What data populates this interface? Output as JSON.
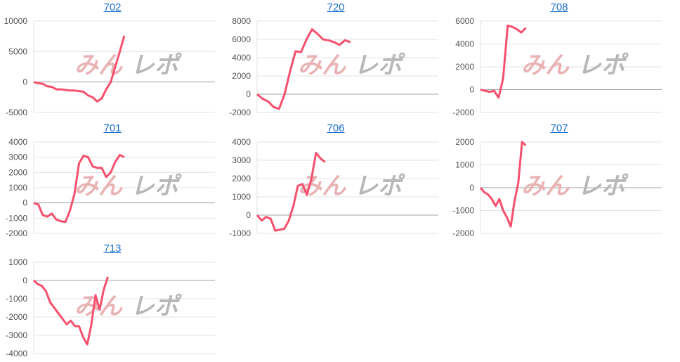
{
  "watermark": "みんレポ",
  "colors": {
    "line": "#f5506e",
    "grid": "#e3e3e3",
    "zero": "#a0a0a0",
    "title": "#1a6fd0"
  },
  "chart_data": [
    {
      "type": "line",
      "title": "702",
      "ylim": [
        -5000,
        10000
      ],
      "yticks": [
        10000,
        5000,
        0,
        -5000
      ],
      "xslots": 41,
      "values": [
        0,
        -200,
        -300,
        -700,
        -800,
        -1200,
        -1200,
        -1300,
        -1400,
        -1400,
        -1500,
        -1600,
        -2200,
        -2500,
        -3200,
        -2700,
        -1200,
        0,
        2500,
        5000,
        7600
      ]
    },
    {
      "type": "line",
      "title": "720",
      "ylim": [
        -2000,
        8000
      ],
      "yticks": [
        8000,
        6000,
        4000,
        2000,
        0,
        -2000
      ],
      "xslots": 34,
      "values": [
        0,
        -500,
        -800,
        -1400,
        -1600,
        0,
        2500,
        4700,
        4600,
        6000,
        7100,
        6600,
        6000,
        5900,
        5700,
        5400,
        5900,
        5700
      ]
    },
    {
      "type": "line",
      "title": "708",
      "ylim": [
        -2000,
        6000
      ],
      "yticks": [
        6000,
        4000,
        2000,
        0,
        -2000
      ],
      "xslots": 41,
      "values": [
        0,
        -100,
        -200,
        -100,
        -700,
        1000,
        5600,
        5500,
        5300,
        5000,
        5400
      ]
    },
    {
      "type": "line",
      "title": "701",
      "ylim": [
        -2000,
        4000
      ],
      "yticks": [
        4000,
        3000,
        2000,
        1000,
        0,
        -1000,
        -2000
      ],
      "xslots": 41,
      "values": [
        0,
        -100,
        -800,
        -900,
        -700,
        -1100,
        -1200,
        -1250,
        -500,
        600,
        2600,
        3100,
        3000,
        2400,
        2300,
        2300,
        1700,
        2000,
        2700,
        3150,
        3000
      ]
    },
    {
      "type": "line",
      "title": "706",
      "ylim": [
        -1000,
        4000
      ],
      "yticks": [
        4000,
        3000,
        2000,
        1000,
        0,
        -1000
      ],
      "xslots": 41,
      "values": [
        0,
        -300,
        -100,
        -200,
        -850,
        -800,
        -750,
        -300,
        500,
        1600,
        1700,
        1100,
        2000,
        3400,
        3100,
        2900
      ]
    },
    {
      "type": "line",
      "title": "707",
      "ylim": [
        -2000,
        2000
      ],
      "yticks": [
        2000,
        1000,
        0,
        -1000,
        -2000
      ],
      "xslots": 49,
      "values": [
        0,
        -200,
        -300,
        -500,
        -800,
        -500,
        -1000,
        -1300,
        -1700,
        -600,
        200,
        2000,
        1850
      ]
    },
    {
      "type": "line",
      "title": "713",
      "ylim": [
        -4000,
        1000
      ],
      "yticks": [
        1000,
        0,
        -1000,
        -2000,
        -3000,
        -4000
      ],
      "xslots": 45,
      "values": [
        0,
        -200,
        -300,
        -600,
        -1200,
        -1500,
        -1800,
        -2100,
        -2400,
        -2200,
        -2500,
        -2500,
        -3100,
        -3500,
        -2400,
        -800,
        -1600,
        -500,
        200
      ]
    }
  ]
}
